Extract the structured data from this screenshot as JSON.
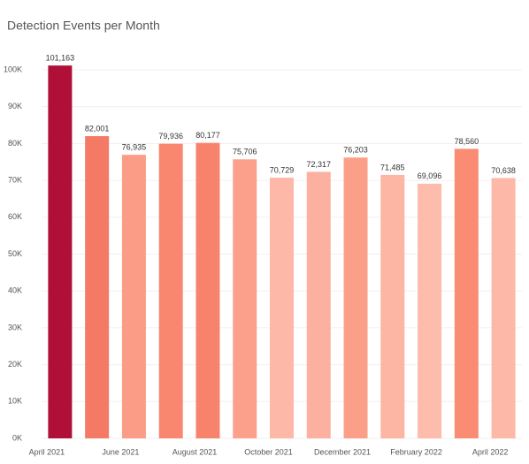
{
  "chart_data": {
    "type": "bar",
    "title": "Detection Events per Month",
    "categories": [
      "April 2021",
      null,
      "June 2021",
      null,
      "August 2021",
      null,
      "October 2021",
      null,
      "December 2021",
      null,
      "February 2022",
      null,
      "April 2022"
    ],
    "values": [
      101163,
      82001,
      76935,
      79936,
      80177,
      75706,
      70729,
      72317,
      76203,
      71485,
      69096,
      78560,
      70638
    ],
    "value_labels": [
      "101,163",
      "82,001",
      "76,935",
      "79,936",
      "80,177",
      "75,706",
      "70,729",
      "72,317",
      "76,203",
      "71,485",
      "69,096",
      "78,560",
      "70,638"
    ],
    "colors": [
      "#b01038",
      "#f47a65",
      "#fb9c86",
      "#f9876f",
      "#f8836c",
      "#fca08b",
      "#fdb8a8",
      "#fcb09f",
      "#fc9f89",
      "#fdb5a4",
      "#fdbcac",
      "#fa8c74",
      "#fdb8a8"
    ],
    "ylim": [
      0,
      104000
    ],
    "yticks": [
      {
        "value": 0,
        "label": "0K"
      },
      {
        "value": 10000,
        "label": "10K"
      },
      {
        "value": 20000,
        "label": "20K"
      },
      {
        "value": 30000,
        "label": "30K"
      },
      {
        "value": 40000,
        "label": "40K"
      },
      {
        "value": 50000,
        "label": "50K"
      },
      {
        "value": 60000,
        "label": "60K"
      },
      {
        "value": 70000,
        "label": "70K"
      },
      {
        "value": 80000,
        "label": "80K"
      },
      {
        "value": 90000,
        "label": "90K"
      },
      {
        "value": 100000,
        "label": "100K"
      }
    ],
    "grid": true
  }
}
